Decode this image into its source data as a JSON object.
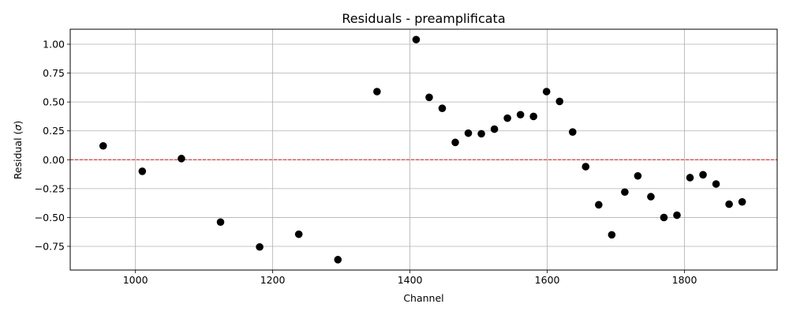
{
  "chart_data": {
    "type": "scatter",
    "title": "Residuals - preamplificata",
    "xlabel": "Channel",
    "ylabel_text": "Residual (",
    "ylabel_symbol": "σ",
    "ylabel_close": ")",
    "xlim": [
      905,
      1935
    ],
    "ylim": [
      -0.955,
      1.13
    ],
    "xticks": [
      1000,
      1200,
      1400,
      1600,
      1800
    ],
    "yticks": [
      -0.75,
      -0.5,
      -0.25,
      0.0,
      0.25,
      0.5,
      0.75,
      1.0
    ],
    "ytick_labels": [
      "−0.75",
      "−0.50",
      "−0.25",
      "0.00",
      "0.25",
      "0.50",
      "0.75",
      "1.00"
    ],
    "grid": true,
    "reference_line": {
      "y": 0,
      "color": "#e31a1c",
      "style": "dashed"
    },
    "marker_color": "#000000",
    "x": [
      953,
      1010,
      1067,
      1124,
      1181,
      1238,
      1295,
      1352,
      1409,
      1428,
      1447,
      1466,
      1485,
      1504,
      1523,
      1542,
      1561,
      1580,
      1599,
      1618,
      1637,
      1656,
      1675,
      1694,
      1713,
      1732,
      1751,
      1770,
      1789,
      1808,
      1827,
      1846,
      1865,
      1884
    ],
    "y": [
      0.12,
      -0.1,
      0.01,
      -0.54,
      -0.755,
      -0.645,
      -0.865,
      0.59,
      1.04,
      0.54,
      0.445,
      0.15,
      0.23,
      0.225,
      0.265,
      0.36,
      0.39,
      0.375,
      0.59,
      0.505,
      0.24,
      -0.06,
      -0.39,
      -0.65,
      -0.28,
      -0.14,
      -0.32,
      -0.5,
      -0.48,
      -0.155,
      -0.13,
      -0.21,
      -0.385,
      -0.365
    ]
  }
}
